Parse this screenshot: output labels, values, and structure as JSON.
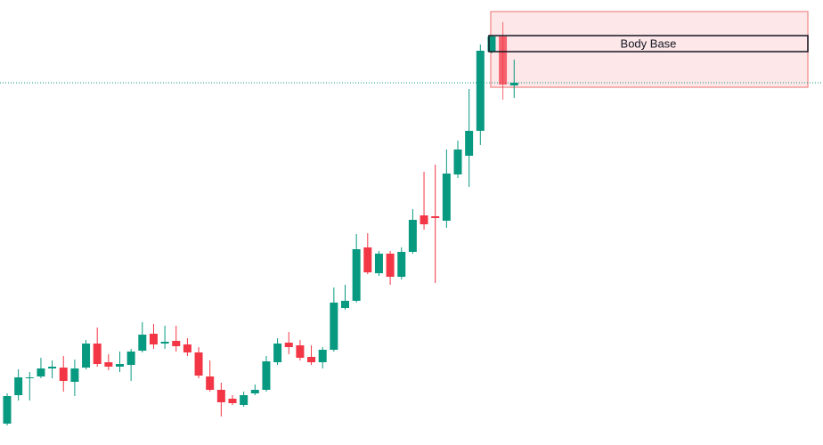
{
  "chart_data": {
    "type": "candlestick",
    "up_color": "#089981",
    "down_color": "#f23645",
    "ylim": [
      0,
      500
    ],
    "open": [
      24,
      56,
      75,
      77,
      86,
      87,
      71,
      87,
      114,
      93,
      88,
      90,
      106,
      125,
      114,
      117,
      113,
      104,
      77,
      62,
      52,
      45,
      58,
      62,
      93,
      115,
      112,
      99,
      93,
      107,
      154,
      162,
      222,
      193,
      215,
      189,
      217,
      258,
      257,
      252,
      304,
      325,
      353,
      442,
      459,
      404
    ],
    "high": [
      58,
      85,
      82,
      98,
      95,
      100,
      96,
      118,
      132,
      102,
      105,
      108,
      138,
      136,
      134,
      134,
      120,
      110,
      95,
      70,
      56,
      60,
      68,
      100,
      120,
      127,
      118,
      112,
      110,
      177,
      180,
      237,
      238,
      218,
      218,
      222,
      265,
      307,
      315,
      332,
      342,
      400,
      450,
      460,
      475,
      433
    ],
    "low": [
      22,
      50,
      50,
      75,
      75,
      60,
      55,
      85,
      88,
      84,
      82,
      72,
      104,
      108,
      108,
      105,
      100,
      75,
      60,
      32,
      45,
      43,
      56,
      60,
      90,
      102,
      95,
      90,
      86,
      105,
      152,
      160,
      192,
      190,
      180,
      186,
      215,
      242,
      182,
      244,
      300,
      290,
      337,
      440,
      388,
      390
    ],
    "close": [
      55,
      76,
      76,
      86,
      88,
      72,
      86,
      114,
      91,
      88,
      91,
      105,
      124,
      113,
      116,
      111,
      104,
      78,
      62,
      48,
      47,
      56,
      62,
      94,
      114,
      110,
      98,
      93,
      107,
      160,
      162,
      220,
      194,
      215,
      189,
      217,
      253,
      248,
      255,
      305,
      332,
      353,
      443,
      459,
      405,
      407
    ],
    "zone": {
      "high": 487,
      "low": 402
    },
    "body_base": {
      "label": "Body Base",
      "high": 460,
      "low": 442
    }
  }
}
